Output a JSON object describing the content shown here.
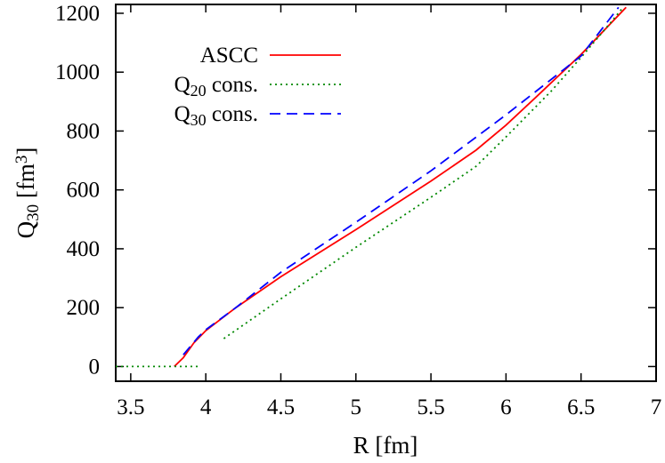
{
  "chart_data": {
    "type": "line",
    "title": "",
    "xlabel": "R [fm]",
    "ylabel_main": "Q",
    "ylabel_sub": "30",
    "ylabel_unit": " [fm",
    "ylabel_sup": "3",
    "ylabel_close": "]",
    "xlim": [
      3.4,
      7.0
    ],
    "ylim": [
      -50,
      1230
    ],
    "xticks": [
      3.5,
      4,
      4.5,
      5,
      5.5,
      6,
      6.5,
      7
    ],
    "xtick_labels": [
      "3.5",
      "4",
      "4.5",
      "5",
      "5.5",
      "6",
      "6.5",
      "7"
    ],
    "yticks": [
      0,
      200,
      400,
      600,
      800,
      1000,
      1200
    ],
    "ytick_labels": [
      "0",
      "200",
      "400",
      "600",
      "800",
      "1000",
      "1200"
    ],
    "grid": false,
    "legend_position": "top-left",
    "series": [
      {
        "key": "ascc",
        "legend_main": "ASCC",
        "legend_sub": "",
        "legend_rest": "",
        "color": "#ff0000",
        "style": "solid",
        "points": [
          [
            3.79,
            0
          ],
          [
            3.85,
            30
          ],
          [
            3.92,
            80
          ],
          [
            4.0,
            122
          ],
          [
            4.2,
            200
          ],
          [
            4.5,
            305
          ],
          [
            5.0,
            465
          ],
          [
            5.5,
            630
          ],
          [
            5.8,
            735
          ],
          [
            6.0,
            820
          ],
          [
            6.2,
            915
          ],
          [
            6.5,
            1060
          ],
          [
            6.8,
            1220
          ]
        ]
      },
      {
        "key": "q20",
        "legend_main": "Q",
        "legend_sub": "20",
        "legend_rest": " cons.",
        "color": "#008800",
        "style": "dotted",
        "points": [
          [
            3.4,
            0
          ],
          [
            3.95,
            0
          ],
          [
            null,
            null
          ],
          [
            4.12,
            95
          ],
          [
            4.5,
            230
          ],
          [
            5.0,
            405
          ],
          [
            5.5,
            575
          ],
          [
            5.8,
            680
          ],
          [
            6.0,
            780
          ],
          [
            6.3,
            935
          ],
          [
            6.5,
            1050
          ],
          [
            6.7,
            1170
          ],
          [
            6.78,
            1220
          ]
        ]
      },
      {
        "key": "q30",
        "legend_main": "Q",
        "legend_sub": "30",
        "legend_rest": " cons.",
        "color": "#0000ff",
        "style": "dashed",
        "points": [
          [
            3.85,
            40
          ],
          [
            3.95,
            100
          ],
          [
            4.0,
            125
          ],
          [
            4.2,
            200
          ],
          [
            4.5,
            320
          ],
          [
            5.0,
            490
          ],
          [
            5.5,
            665
          ],
          [
            6.0,
            855
          ],
          [
            6.5,
            1055
          ],
          [
            6.75,
            1220
          ]
        ]
      }
    ]
  }
}
